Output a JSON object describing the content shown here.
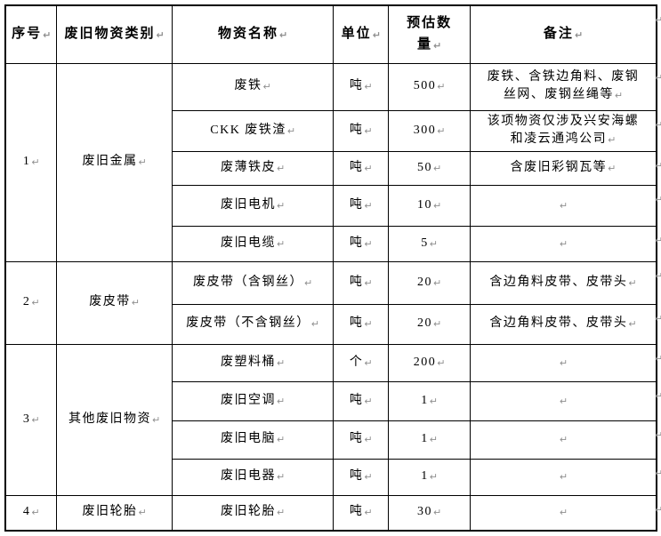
{
  "document": {
    "formatting_mark": "↵",
    "mark_color": "#8f8f8f",
    "table": {
      "headers": [
        "序号",
        "废旧物资类别",
        "物资名称",
        "单位",
        "预估数量",
        "备注"
      ],
      "sections": [
        {
          "no": "1",
          "category": "废旧金属",
          "rows": [
            {
              "name": "废铁",
              "unit": "吨",
              "qty": "500",
              "note": "废铁、含铁边角料、废钢丝网、废钢丝绳等"
            },
            {
              "name": "CKK 废铁渣",
              "unit": "吨",
              "qty": "300",
              "note": "该项物资仅涉及兴安海螺和凌云通鸿公司"
            },
            {
              "name": "废薄铁皮",
              "unit": "吨",
              "qty": "50",
              "note": "含废旧彩钢瓦等"
            },
            {
              "name": "废旧电机",
              "unit": "吨",
              "qty": "10",
              "note": ""
            },
            {
              "name": "废旧电缆",
              "unit": "吨",
              "qty": "5",
              "note": ""
            }
          ]
        },
        {
          "no": "2",
          "category": "废皮带",
          "rows": [
            {
              "name": "废皮带（含钢丝）",
              "unit": "吨",
              "qty": "20",
              "note": "含边角料皮带、皮带头"
            },
            {
              "name": "废皮带（不含钢丝）",
              "unit": "吨",
              "qty": "20",
              "note": "含边角料皮带、皮带头"
            }
          ]
        },
        {
          "no": "3",
          "category": "其他废旧物资",
          "rows": [
            {
              "name": "废塑料桶",
              "unit": "个",
              "qty": "200",
              "note": ""
            },
            {
              "name": "废旧空调",
              "unit": "吨",
              "qty": "1",
              "note": ""
            },
            {
              "name": "废旧电脑",
              "unit": "吨",
              "qty": "1",
              "note": ""
            },
            {
              "name": "废旧电器",
              "unit": "吨",
              "qty": "1",
              "note": ""
            }
          ]
        },
        {
          "no": "4",
          "category": "废旧轮胎",
          "rows": [
            {
              "name": "废旧轮胎",
              "unit": "吨",
              "qty": "30",
              "note": ""
            }
          ]
        }
      ]
    }
  }
}
